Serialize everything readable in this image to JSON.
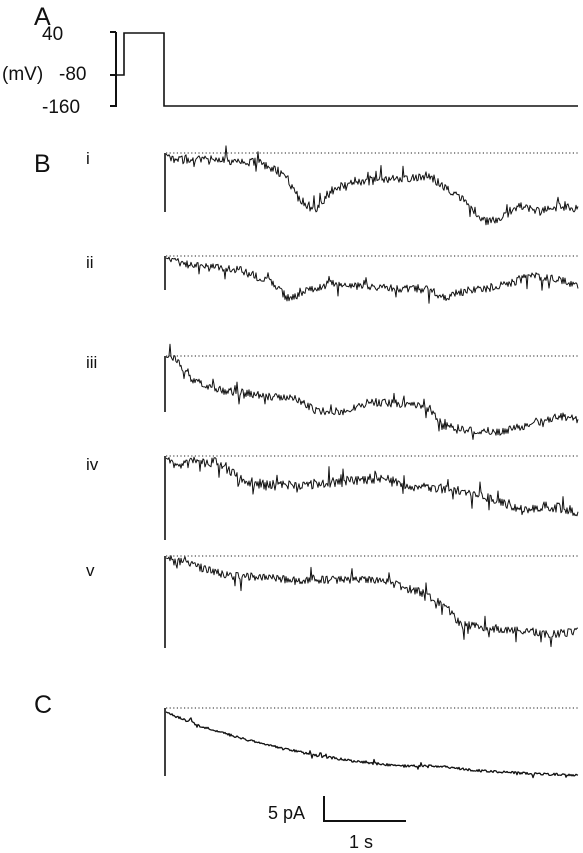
{
  "panels": {
    "a": {
      "letter": "A",
      "unit_label": "(mV)",
      "ticks": [
        "40",
        "-80",
        "-160"
      ],
      "protocol_mV": [
        -80,
        40,
        -160
      ]
    },
    "b": {
      "letter": "B",
      "traces": [
        {
          "label": "i"
        },
        {
          "label": "ii"
        },
        {
          "label": "iii"
        },
        {
          "label": "iv"
        },
        {
          "label": "v"
        }
      ]
    },
    "c": {
      "letter": "C"
    }
  },
  "scale_bar": {
    "current_label": "5 pA",
    "time_label": "1 s"
  }
}
